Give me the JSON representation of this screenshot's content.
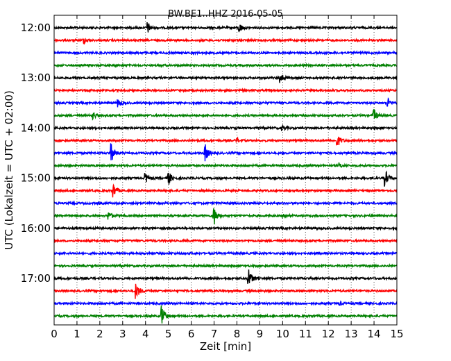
{
  "chart_data": {
    "type": "line",
    "title": "BW.BE1..HHZ 2016-05-05",
    "xlabel": "Zeit  [min]",
    "ylabel": "UTC (Lokalzeit = UTC + 02:00)",
    "xlim": [
      0,
      15
    ],
    "x_ticks": [
      "0",
      "1",
      "2",
      "3",
      "4",
      "5",
      "6",
      "7",
      "8",
      "9",
      "10",
      "11",
      "12",
      "13",
      "14",
      "15"
    ],
    "y_ticks": [
      "12:00",
      "13:00",
      "14:00",
      "15:00",
      "16:00",
      "17:00"
    ],
    "grid": "vertical dotted",
    "trace_minutes": 15,
    "color_cycle": [
      "#000000",
      "#ff0000",
      "#0000ff",
      "#008000"
    ],
    "traces": [
      {
        "start": "12:00",
        "events": [
          {
            "t": 4.1,
            "amp": 0.7
          },
          {
            "t": 8.1,
            "amp": 0.6
          }
        ]
      },
      {
        "start": "12:15",
        "events": [
          {
            "t": 1.3,
            "amp": 0.4
          }
        ]
      },
      {
        "start": "12:30",
        "events": []
      },
      {
        "start": "12:45",
        "events": []
      },
      {
        "start": "13:00",
        "events": [
          {
            "t": 9.9,
            "amp": 0.7
          }
        ]
      },
      {
        "start": "13:15",
        "events": []
      },
      {
        "start": "13:30",
        "events": [
          {
            "t": 2.8,
            "amp": 0.6
          },
          {
            "t": 14.6,
            "amp": 0.6
          }
        ]
      },
      {
        "start": "13:45",
        "events": [
          {
            "t": 1.7,
            "amp": 0.5
          },
          {
            "t": 14.0,
            "amp": 0.8
          }
        ]
      },
      {
        "start": "14:00",
        "events": [
          {
            "t": 10.0,
            "amp": 0.3
          }
        ]
      },
      {
        "start": "14:15",
        "events": [
          {
            "t": 8.0,
            "amp": 0.3
          },
          {
            "t": 12.4,
            "amp": 0.8
          }
        ]
      },
      {
        "start": "14:30",
        "events": [
          {
            "t": 2.5,
            "amp": 1.2
          },
          {
            "t": 6.6,
            "amp": 1.2
          }
        ]
      },
      {
        "start": "14:45",
        "events": [
          {
            "t": 12.5,
            "amp": 0.3
          }
        ]
      },
      {
        "start": "15:00",
        "events": [
          {
            "t": 4.0,
            "amp": 0.6
          },
          {
            "t": 5.0,
            "amp": 0.9
          },
          {
            "t": 14.5,
            "amp": 1.0
          }
        ]
      },
      {
        "start": "15:15",
        "events": [
          {
            "t": 2.6,
            "amp": 0.9
          }
        ]
      },
      {
        "start": "15:30",
        "events": []
      },
      {
        "start": "15:45",
        "events": [
          {
            "t": 2.4,
            "amp": 0.5
          },
          {
            "t": 7.0,
            "amp": 1.2
          },
          {
            "t": 10.0,
            "amp": 0.3
          }
        ]
      },
      {
        "start": "16:00",
        "events": []
      },
      {
        "start": "16:15",
        "events": []
      },
      {
        "start": "16:30",
        "events": []
      },
      {
        "start": "16:45",
        "events": []
      },
      {
        "start": "17:00",
        "events": [
          {
            "t": 8.5,
            "amp": 1.3
          }
        ]
      },
      {
        "start": "17:15",
        "events": [
          {
            "t": 3.6,
            "amp": 1.0
          }
        ]
      },
      {
        "start": "17:30",
        "events": [
          {
            "t": 12.5,
            "amp": 0.2
          }
        ]
      },
      {
        "start": "17:45",
        "events": [
          {
            "t": 4.7,
            "amp": 1.5
          }
        ]
      }
    ]
  }
}
